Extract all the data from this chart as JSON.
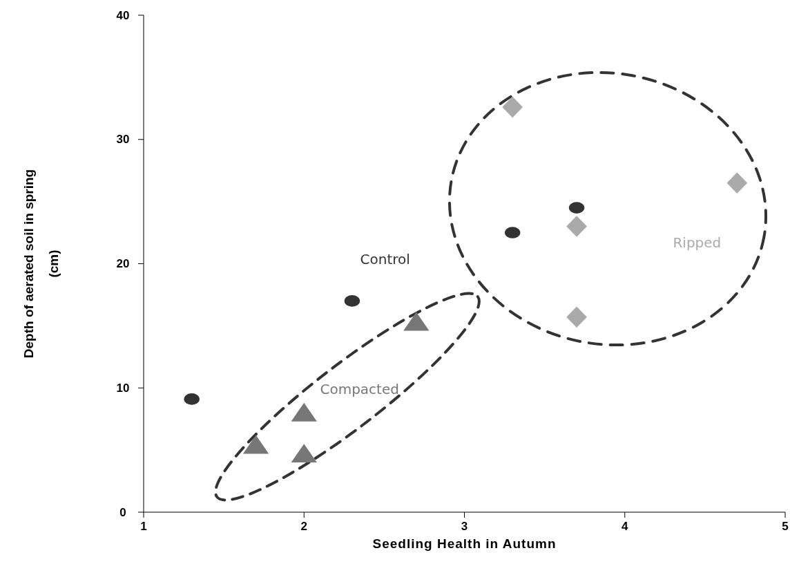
{
  "chart_data": {
    "type": "scatter",
    "xlabel": "Seedling Health in Autumn",
    "ylabel": "Depth of aerated soil in spring\n(cm)",
    "xlim": [
      1,
      5
    ],
    "xticks": [
      1,
      2,
      3,
      4,
      5
    ],
    "ylim": [
      0,
      40
    ],
    "yticks": [
      0,
      10,
      20,
      30,
      40
    ],
    "grid": false,
    "series": [
      {
        "name": "Control",
        "color": "#333333",
        "marker": "circle",
        "x": [
          1.3,
          2.3,
          3.3,
          3.7
        ],
        "values": [
          9.1,
          17.0,
          22.5,
          24.5
        ]
      },
      {
        "name": "Compacted",
        "color": "#777777",
        "marker": "triangle",
        "x": [
          1.7,
          2.0,
          2.0,
          2.7
        ],
        "values": [
          5.2,
          7.8,
          4.5,
          15.1
        ]
      },
      {
        "name": "Ripped",
        "color": "#aaaaaa",
        "marker": "diamond",
        "x": [
          3.3,
          4.7,
          3.7,
          3.7
        ],
        "values": [
          32.6,
          26.5,
          23.0,
          15.7
        ]
      }
    ]
  }
}
